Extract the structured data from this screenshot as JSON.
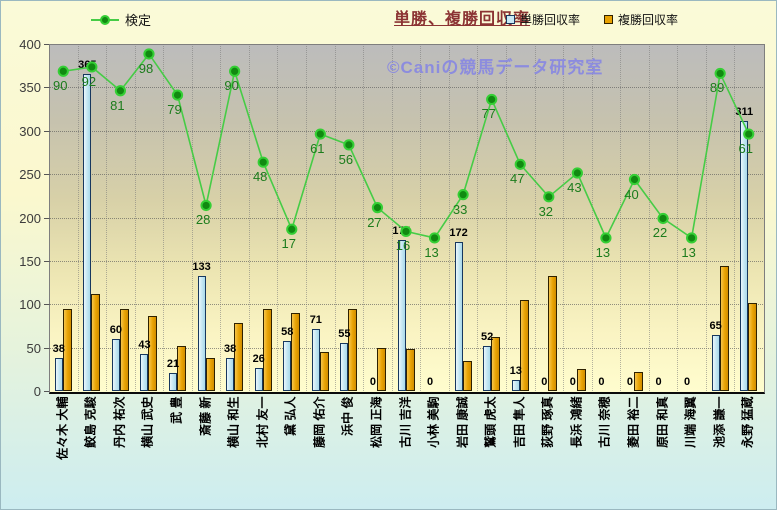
{
  "header": {
    "title": "単勝、複勝回収率",
    "kentei_legend_label": "検定",
    "legend": [
      {
        "label": "単勝回収率",
        "swatch_fill": "#c9e9f4",
        "swatch_border": "#17375e"
      },
      {
        "label": "複勝回収率",
        "swatch_fill": "#e8a202",
        "swatch_border": "#2e2100"
      }
    ]
  },
  "watermark": "©Caniの競馬データ研究室",
  "chart_data": {
    "type": "bar",
    "subtype": "grouped bars with overlaid line (line on hidden secondary axis)",
    "title": "単勝、複勝回収率",
    "categories": [
      "佐々木 大輔",
      "鮫島 克駿",
      "丹内 祐次",
      "横山 武史",
      "武 豊",
      "斎藤 新",
      "横山 和生",
      "北村 友一",
      "黛 弘人",
      "藤岡 佑介",
      "浜中 俊",
      "松岡 正海",
      "古川 吉洋",
      "小林 美駒",
      "岩田 康誠",
      "鷲頭 虎太",
      "吉田 隼人",
      "荻野 琢真",
      "長浜 鴻緒",
      "古川 奈穂",
      "菱田 裕二",
      "原田 和真",
      "川端 海翼",
      "池添 謙一",
      "永野 猛蔵"
    ],
    "series": [
      {
        "name": "単勝回収率",
        "type": "bar",
        "color": "#c9e9f4",
        "data_labels_visible": true,
        "values": [
          38,
          365,
          60,
          43,
          21,
          133,
          38,
          26,
          58,
          71,
          55,
          0,
          174,
          0,
          172,
          52,
          13,
          0,
          0,
          0,
          0,
          0,
          0,
          65,
          311
        ]
      },
      {
        "name": "複勝回収率",
        "type": "bar",
        "color": "#e8a202",
        "data_labels_visible": false,
        "values_estimated_from_pixels": true,
        "values": [
          95,
          112,
          95,
          86,
          52,
          38,
          78,
          95,
          90,
          45,
          95,
          50,
          48,
          0,
          35,
          62,
          105,
          132,
          25,
          0,
          22,
          0,
          0,
          144,
          102
        ]
      },
      {
        "name": "検定",
        "type": "line",
        "color": "#46cc46",
        "data_labels_visible": true,
        "values": [
          90,
          92,
          81,
          98,
          79,
          28,
          90,
          48,
          17,
          61,
          56,
          27,
          16,
          13,
          33,
          77,
          47,
          32,
          43,
          13,
          40,
          22,
          13,
          89,
          61
        ],
        "secondary_axis_mapping": {
          "note": "plotted y in primary-axis units = offset + scale * value",
          "offset": 144,
          "scale": 2.495
        }
      }
    ],
    "y_axis": {
      "min": 0,
      "max": 400,
      "tick_interval": 50,
      "ticks": [
        400,
        350,
        300,
        250,
        200,
        150,
        100,
        50,
        0
      ]
    },
    "grid": {
      "horizontal": true,
      "vertical": true,
      "style": "dotted"
    },
    "legend_position": "top"
  }
}
